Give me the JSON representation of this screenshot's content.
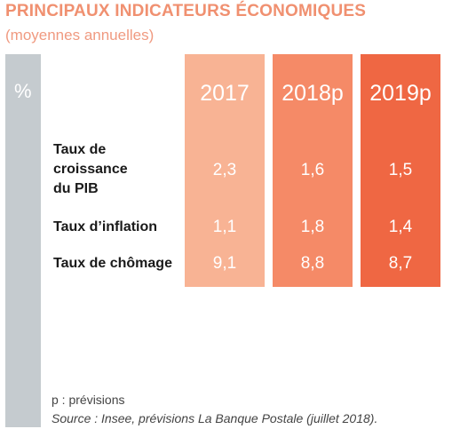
{
  "title": "PRINCIPAUX INDICATEURS ÉCONOMIQUES",
  "subtitle": "(moyennes annuelles)",
  "unit": "%",
  "chart_data": {
    "type": "table",
    "columns": [
      "2017",
      "2018p",
      "2019p"
    ],
    "rows": [
      {
        "label": [
          "Taux de",
          "croissance",
          "du PIB"
        ],
        "values": [
          "2,3",
          "1,6",
          "1,5"
        ]
      },
      {
        "label": [
          "Taux d’inflation"
        ],
        "values": [
          "1,1",
          "1,8",
          "1,4"
        ]
      },
      {
        "label": [
          "Taux de chômage"
        ],
        "values": [
          "9,1",
          "8,8",
          "8,7"
        ]
      }
    ],
    "colors": [
      "#f8b394",
      "#f58a67",
      "#ef6743"
    ]
  },
  "note": "p : prévisions",
  "source": "Source : Insee, prévisions La Banque Postale (juillet 2018)."
}
